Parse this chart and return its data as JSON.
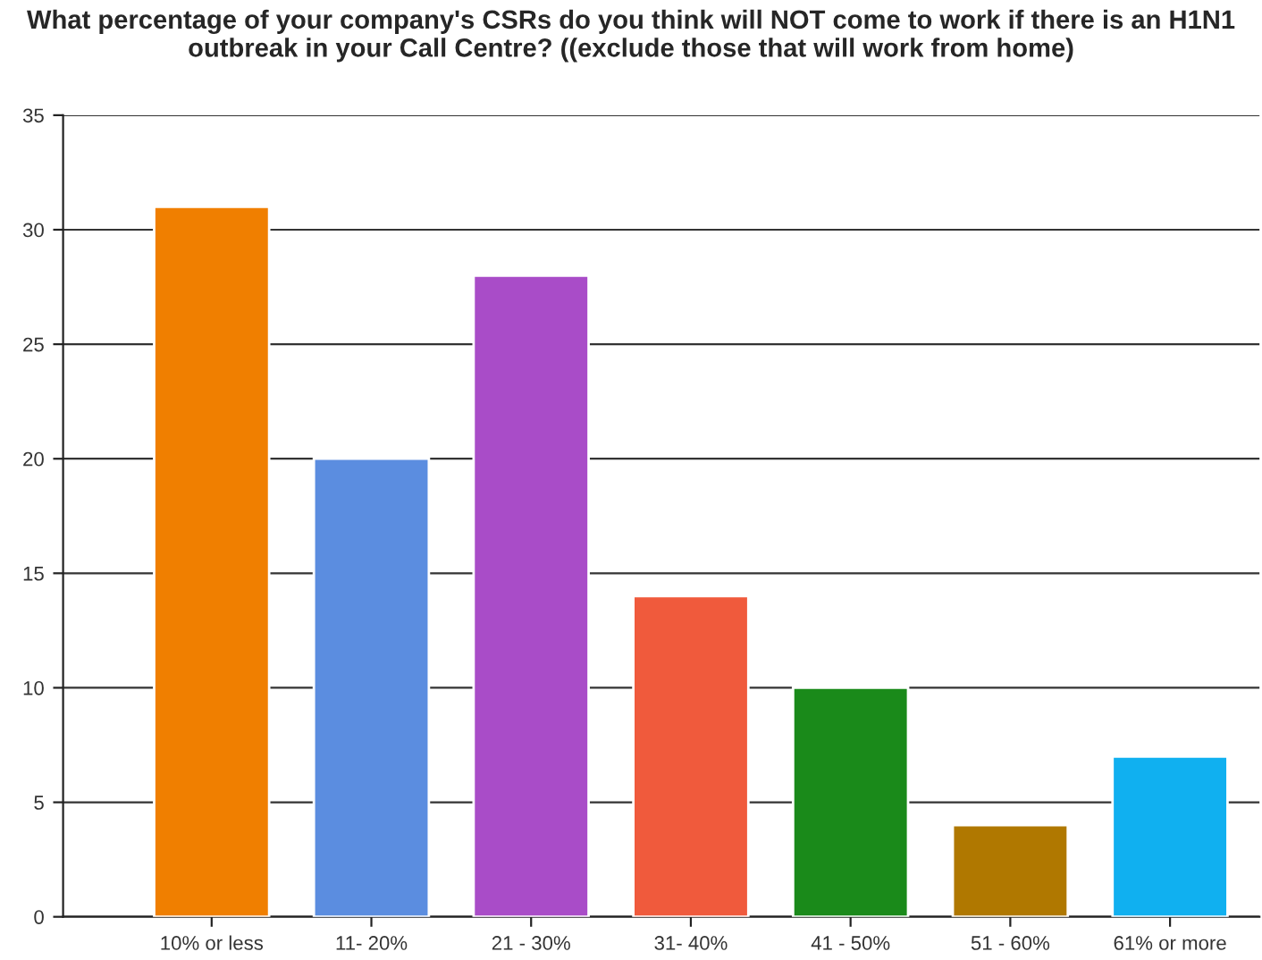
{
  "chart_data": {
    "type": "bar",
    "title": "What percentage of your company's CSRs do you think will NOT come to work if there is an H1N1 outbreak in your Call Centre? ((exclude those that will work from home)",
    "categories": [
      "10% or less",
      "11- 20%",
      "21 - 30%",
      "31- 40%",
      "41 - 50%",
      "51 - 60%",
      "61% or more"
    ],
    "values": [
      31,
      20,
      28,
      14,
      10,
      4,
      7
    ],
    "colors": [
      "#f07f00",
      "#5b8de0",
      "#a94cc8",
      "#f05a3c",
      "#1a8a1a",
      "#b07800",
      "#10b0f0"
    ],
    "ylim": [
      0,
      35
    ],
    "yticks": [
      0,
      5,
      10,
      15,
      20,
      25,
      30,
      35
    ],
    "grid": "y",
    "legend": false
  }
}
